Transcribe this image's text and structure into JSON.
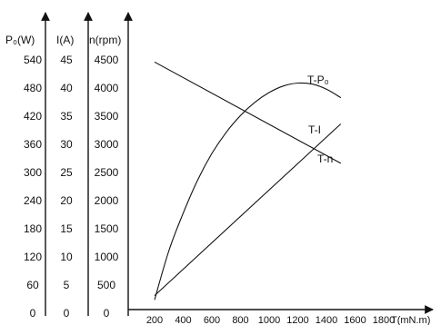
{
  "chart_data": {
    "type": "line",
    "x": {
      "label": "T(mN.m)",
      "range": [
        100,
        1900
      ],
      "ticks": [
        200,
        400,
        600,
        800,
        1000,
        1200,
        1400,
        1600,
        1800
      ]
    },
    "y_axes": [
      {
        "id": "p0",
        "label": "P₀(W)",
        "range": [
          0,
          600
        ],
        "ticks": [
          0,
          60,
          120,
          180,
          240,
          300,
          360,
          420,
          480,
          540
        ]
      },
      {
        "id": "i",
        "label": "I(A)",
        "range": [
          0,
          50
        ],
        "ticks": [
          0,
          5,
          10,
          15,
          20,
          25,
          30,
          35,
          40,
          45
        ]
      },
      {
        "id": "n",
        "label": "n(rpm)",
        "range": [
          0,
          5000
        ],
        "ticks": [
          "0",
          "500",
          "1000",
          "1500",
          "2000",
          "2500",
          "3000",
          "3500",
          "4000",
          "4500"
        ]
      }
    ],
    "series": [
      {
        "name": "T-P₀",
        "axis": "p0",
        "points": [
          [
            200,
            15
          ],
          [
            300,
            120
          ],
          [
            400,
            200
          ],
          [
            500,
            270
          ],
          [
            600,
            327
          ],
          [
            700,
            372
          ],
          [
            800,
            408
          ],
          [
            900,
            436
          ],
          [
            1000,
            457
          ],
          [
            1100,
            471
          ],
          [
            1200,
            477
          ],
          [
            1300,
            475
          ],
          [
            1400,
            464
          ],
          [
            1500,
            446
          ]
        ]
      },
      {
        "name": "T-I",
        "axis": "i",
        "points": [
          [
            200,
            2
          ],
          [
            1500,
            32.5
          ]
        ]
      },
      {
        "name": "T-n",
        "axis": "n",
        "points": [
          [
            200,
            4350
          ],
          [
            1500,
            2550
          ]
        ]
      }
    ]
  }
}
